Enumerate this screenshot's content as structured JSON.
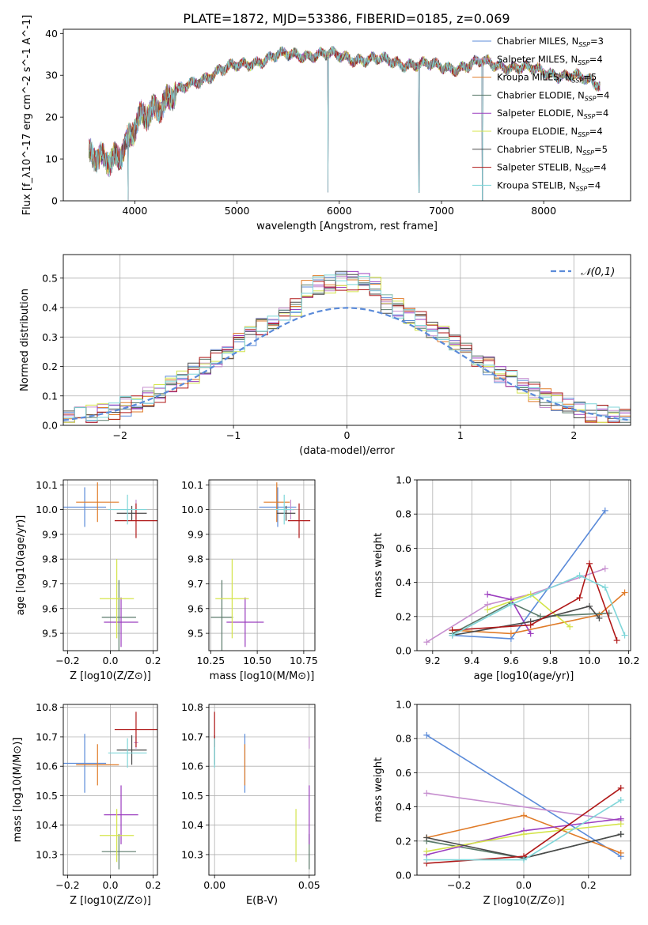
{
  "figure": {
    "title": "PLATE=1872, MJD=53386, FIBERID=0185, z=0.069"
  },
  "models": [
    {
      "name": "Chabrier MILES",
      "nssp": "3",
      "color": "#5b8bd9",
      "z": -0.12,
      "ze": 0.1,
      "age": 10.01,
      "agee": 0.08,
      "mass": 10.61,
      "masse": 0.1,
      "ebv": 0.016
    },
    {
      "name": "Salpeter MILES",
      "nssp": "4",
      "color": "#c68ecf",
      "z": 0.12,
      "ze": 0.01,
      "age": 10.0,
      "agee": 0.04,
      "mass": 10.68,
      "masse": 0.02,
      "ebv": 0.05
    },
    {
      "name": "Kroupa MILES",
      "nssp": "5",
      "color": "#e07b28",
      "z": -0.06,
      "ze": 0.1,
      "age": 10.03,
      "agee": 0.08,
      "mass": 10.605,
      "masse": 0.07,
      "ebv": 0.016
    },
    {
      "name": "Chabrier ELODIE",
      "nssp": "4",
      "color": "#5a7a6a",
      "z": 0.04,
      "ze": 0.08,
      "age": 9.565,
      "agee": 0.15,
      "mass": 10.31,
      "masse": 0.06,
      "ebv": 0.05
    },
    {
      "name": "Salpeter ELODIE",
      "nssp": "4",
      "color": "#9b3dbf",
      "z": 0.05,
      "ze": 0.08,
      "age": 9.545,
      "agee": 0.1,
      "mass": 10.435,
      "masse": 0.1,
      "ebv": 0.05
    },
    {
      "name": "Kroupa ELODIE",
      "nssp": "4",
      "color": "#d4e44a",
      "z": 0.03,
      "ze": 0.08,
      "age": 9.64,
      "agee": 0.16,
      "mass": 10.365,
      "masse": 0.09,
      "ebv": 0.043
    },
    {
      "name": "Chabrier STELIB",
      "nssp": "5",
      "color": "#4a4a4a",
      "z": 0.1,
      "ze": 0.07,
      "age": 9.985,
      "agee": 0.03,
      "mass": 10.655,
      "masse": 0.05,
      "ebv": 0.0
    },
    {
      "name": "Salpeter STELIB",
      "nssp": "4",
      "color": "#b01818",
      "z": 0.12,
      "ze": 0.1,
      "age": 9.955,
      "agee": 0.07,
      "mass": 10.725,
      "masse": 0.06,
      "ebv": 0.0
    },
    {
      "name": "Kroupa STELIB",
      "nssp": "4",
      "color": "#7fd6d9",
      "z": 0.08,
      "ze": 0.09,
      "age": 10.0,
      "agee": 0.06,
      "mass": 10.645,
      "masse": 0.05,
      "ebv": 0.0
    }
  ],
  "chart_data": [
    {
      "type": "line",
      "xlabel": "wavelength [Angstrom, rest frame]",
      "ylabel": "Flux [f_λ10^-17 erg cm^-2 s^-1 A^-1]",
      "xlim": [
        3300,
        8850
      ],
      "ylim": [
        0,
        41
      ],
      "xticks": [
        4000,
        5000,
        6000,
        7000,
        8000
      ],
      "yticks": [
        0,
        10,
        20,
        30,
        40
      ],
      "legend_position": "right",
      "spectrum_knots": {
        "x": [
          3550,
          3700,
          3850,
          3950,
          4050,
          4200,
          4350,
          4500,
          4650,
          4800,
          5000,
          5200,
          5400,
          5600,
          5800,
          6000,
          6200,
          6400,
          6600,
          6800,
          7000,
          7200,
          7400,
          7600,
          7800,
          8000,
          8200,
          8400,
          8550
        ],
        "y": [
          10,
          11,
          11,
          14,
          19,
          23,
          25,
          27,
          29,
          31,
          32,
          33.5,
          34.5,
          35,
          35,
          34.5,
          34,
          33.5,
          33,
          32.5,
          32,
          32,
          33,
          32.5,
          31.5,
          31,
          30,
          29,
          28
        ]
      },
      "absorption_lines": [
        3934,
        5890,
        6780,
        7400
      ]
    },
    {
      "type": "histogram",
      "xlabel": "(data-model)/error",
      "ylabel": "Normed distribution",
      "xlim": [
        -2.5,
        2.5
      ],
      "ylim": [
        0,
        0.58
      ],
      "xticks": [
        -2,
        -1,
        0,
        1,
        2
      ],
      "yticks": [
        0,
        0.1,
        0.2,
        0.3,
        0.4,
        0.5
      ],
      "reference_label": "𝒩(0,1)",
      "reference_color": "#5b8bd9",
      "legend_position": "top-right",
      "bin_width": 0.1
    },
    {
      "type": "scatter",
      "xlabel": "Z [log10(Z/Z⊙)]",
      "ylabel": "age [log10(age/yr)]",
      "xlim": [
        -0.22,
        0.22
      ],
      "ylim": [
        9.43,
        10.12
      ],
      "xticks": [
        -0.2,
        0.0,
        0.2
      ],
      "yticks": [
        9.5,
        9.6,
        9.7,
        9.8,
        9.9,
        10.0,
        10.1
      ]
    },
    {
      "type": "scatter",
      "xlabel": "mass [log10(M/M⊙)]",
      "xlim": [
        10.24,
        10.81
      ],
      "ylim": [
        9.43,
        10.12
      ],
      "xticks": [
        10.25,
        10.5,
        10.75
      ],
      "yticks": [
        9.5,
        9.6,
        9.7,
        9.8,
        9.9,
        10.0,
        10.1
      ]
    },
    {
      "type": "line",
      "xlabel": "age [log10(age/yr)]",
      "ylabel": "mass weight",
      "xlim": [
        9.12,
        10.21
      ],
      "ylim": [
        0,
        1.0
      ],
      "xticks": [
        9.2,
        9.4,
        9.6,
        9.8,
        10.0,
        10.2
      ],
      "yticks": [
        0.0,
        0.2,
        0.4,
        0.6,
        0.8,
        1.0
      ],
      "series": [
        {
          "x": [
            9.3,
            9.6,
            10.08
          ],
          "y": [
            0.09,
            0.07,
            0.82
          ]
        },
        {
          "x": [
            9.17,
            9.48,
            9.7,
            10.08
          ],
          "y": [
            0.05,
            0.27,
            0.33,
            0.48
          ]
        },
        {
          "x": [
            9.3,
            9.6,
            10.05,
            10.18
          ],
          "y": [
            0.12,
            0.1,
            0.21,
            0.34
          ]
        },
        {
          "x": [
            9.3,
            9.6,
            9.75,
            10.1
          ],
          "y": [
            0.1,
            0.28,
            0.2,
            0.22
          ]
        },
        {
          "x": [
            9.48,
            9.6,
            9.7
          ],
          "y": [
            0.33,
            0.3,
            0.1
          ]
        },
        {
          "x": [
            9.48,
            9.7,
            9.9
          ],
          "y": [
            0.24,
            0.33,
            0.14
          ]
        },
        {
          "x": [
            9.3,
            9.7,
            10.0,
            10.05
          ],
          "y": [
            0.09,
            0.17,
            0.26,
            0.19
          ]
        },
        {
          "x": [
            9.3,
            9.7,
            9.95,
            10.0,
            10.14
          ],
          "y": [
            0.12,
            0.15,
            0.31,
            0.51,
            0.06
          ]
        },
        {
          "x": [
            9.3,
            9.6,
            9.95,
            10.08,
            10.18
          ],
          "y": [
            0.09,
            0.27,
            0.44,
            0.37,
            0.09
          ]
        }
      ]
    },
    {
      "type": "scatter",
      "xlabel": "Z [log10(Z/Z⊙)]",
      "ylabel": "mass [log10(M/M⊙)]",
      "xlim": [
        -0.22,
        0.22
      ],
      "ylim": [
        10.23,
        10.81
      ],
      "xticks": [
        -0.2,
        0.0,
        0.2
      ],
      "yticks": [
        10.3,
        10.4,
        10.5,
        10.6,
        10.7,
        10.8
      ]
    },
    {
      "type": "scatter",
      "xlabel": "E(B-V)",
      "xlim": [
        -0.003,
        0.053
      ],
      "ylim": [
        10.23,
        10.81
      ],
      "xticks": [
        0.0,
        0.05
      ],
      "yticks": [
        10.3,
        10.4,
        10.5,
        10.6,
        10.7,
        10.8
      ]
    },
    {
      "type": "line",
      "xlabel": "Z [log10(Z/Z⊙)]",
      "ylabel": "mass weight",
      "xlim": [
        -0.33,
        0.33
      ],
      "ylim": [
        0,
        1.0
      ],
      "xticks": [
        -0.2,
        0.0,
        0.2
      ],
      "yticks": [
        0.0,
        0.2,
        0.4,
        0.6,
        0.8,
        1.0
      ],
      "series": [
        {
          "x": [
            -0.3,
            0.3
          ],
          "y": [
            0.82,
            0.11
          ]
        },
        {
          "x": [
            -0.3,
            0.3
          ],
          "y": [
            0.48,
            0.32
          ]
        },
        {
          "x": [
            -0.3,
            0.0,
            0.3
          ],
          "y": [
            0.22,
            0.35,
            0.13
          ]
        },
        {
          "x": [
            -0.3,
            0.0,
            0.3
          ],
          "y": [
            0.2,
            0.1,
            0.24
          ]
        },
        {
          "x": [
            -0.3,
            0.0,
            0.3
          ],
          "y": [
            0.12,
            0.26,
            0.33
          ]
        },
        {
          "x": [
            -0.3,
            0.0,
            0.3
          ],
          "y": [
            0.14,
            0.24,
            0.3
          ]
        },
        {
          "x": [
            -0.3,
            0.0,
            0.3
          ],
          "y": [
            0.22,
            0.1,
            0.24
          ]
        },
        {
          "x": [
            -0.3,
            0.0,
            0.3
          ],
          "y": [
            0.07,
            0.11,
            0.51
          ]
        },
        {
          "x": [
            -0.3,
            0.0,
            0.3
          ],
          "y": [
            0.09,
            0.09,
            0.44
          ]
        }
      ]
    }
  ]
}
